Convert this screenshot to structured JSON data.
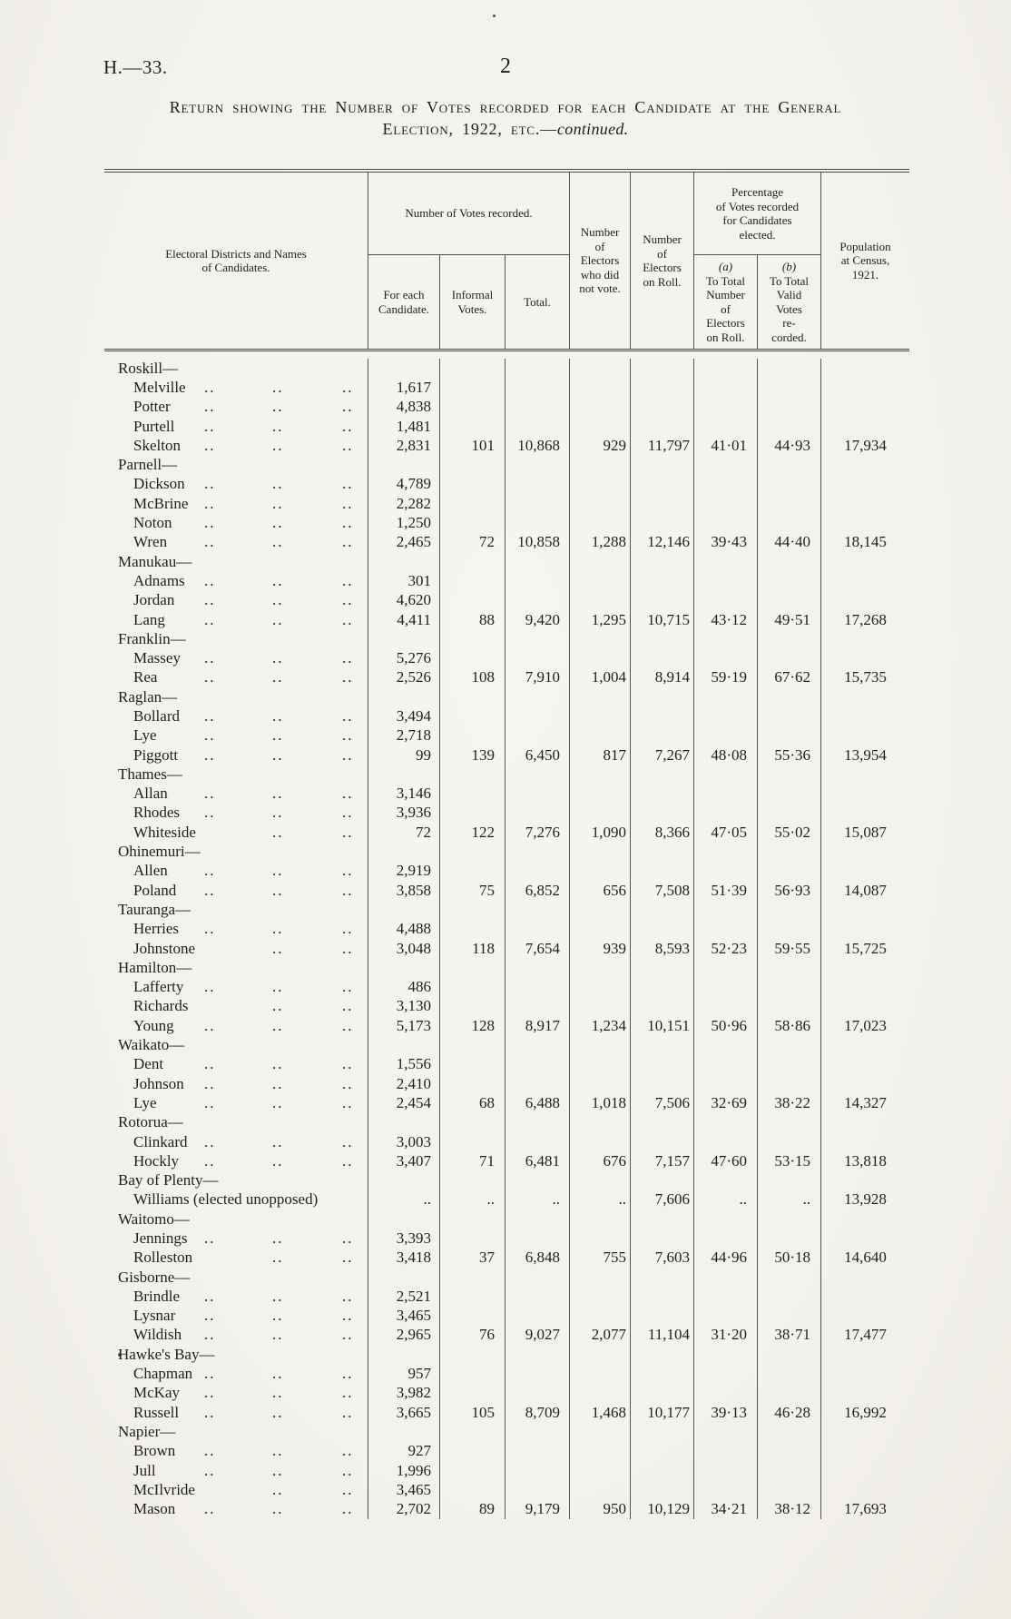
{
  "page": {
    "doc_ref": "H.—33.",
    "page_number": "2",
    "title_line1": "Return showing the Number of Votes recorded for each Candidate at the General",
    "title_line2": "Election, 1922, etc.—",
    "title_line2_italic": "continued."
  },
  "table": {
    "headers": {
      "districts": "Electoral Districts and Names\nof Candidates.",
      "votes_group": "Number of Votes recorded.",
      "for_each": "For each\nCandidate.",
      "informal": "Informal\nVotes.",
      "total": "Total.",
      "not_voted": "Number\nof\nElectors\nwho did\nnot vote.",
      "on_roll": "Number\nof\nElectors\non Roll.",
      "pct_group": "Percentage\nof Votes recorded\nfor Candidates\nelected.",
      "pct_a_label": "(a)",
      "pct_a": "To Total\nNumber\nof\nElectors\non Roll.",
      "pct_b_label": "(b)",
      "pct_b": "To Total\nValid\nVotes\nre-\ncorded.",
      "population": "Population\nat Census,\n1921."
    },
    "districts": [
      {
        "name": "Roskill—",
        "candidates": [
          {
            "name": "Melville",
            "votes": "1,617"
          },
          {
            "name": "Potter",
            "votes": "4,838"
          },
          {
            "name": "Purtell",
            "votes": "1,481"
          },
          {
            "name": "Skelton",
            "votes": "2,831"
          }
        ],
        "informal": "101",
        "total": "10,868",
        "not_voted": "929",
        "on_roll": "11,797",
        "pct_a": "41·01",
        "pct_b": "44·93",
        "population": "17,934"
      },
      {
        "name": "Parnell—",
        "candidates": [
          {
            "name": "Dickson",
            "votes": "4,789"
          },
          {
            "name": "McBrine",
            "votes": "2,282"
          },
          {
            "name": "Noton",
            "votes": "1,250"
          },
          {
            "name": "Wren",
            "votes": "2,465"
          }
        ],
        "informal": "72",
        "total": "10,858",
        "not_voted": "1,288",
        "on_roll": "12,146",
        "pct_a": "39·43",
        "pct_b": "44·40",
        "population": "18,145"
      },
      {
        "name": "Manukau—",
        "candidates": [
          {
            "name": "Adnams",
            "votes": "301"
          },
          {
            "name": "Jordan",
            "votes": "4,620"
          },
          {
            "name": "Lang",
            "votes": "4,411"
          }
        ],
        "informal": "88",
        "total": "9,420",
        "not_voted": "1,295",
        "on_roll": "10,715",
        "pct_a": "43·12",
        "pct_b": "49·51",
        "population": "17,268"
      },
      {
        "name": "Franklin—",
        "candidates": [
          {
            "name": "Massey",
            "votes": "5,276"
          },
          {
            "name": "Rea",
            "votes": "2,526"
          }
        ],
        "informal": "108",
        "total": "7,910",
        "not_voted": "1,004",
        "on_roll": "8,914",
        "pct_a": "59·19",
        "pct_b": "67·62",
        "population": "15,735"
      },
      {
        "name": "Raglan—",
        "candidates": [
          {
            "name": "Bollard",
            "votes": "3,494"
          },
          {
            "name": "Lye",
            "votes": "2,718"
          },
          {
            "name": "Piggott",
            "votes": "99"
          }
        ],
        "informal": "139",
        "total": "6,450",
        "not_voted": "817",
        "on_roll": "7,267",
        "pct_a": "48·08",
        "pct_b": "55·36",
        "population": "13,954"
      },
      {
        "name": "Thames—",
        "candidates": [
          {
            "name": "Allan",
            "votes": "3,146"
          },
          {
            "name": "Rhodes",
            "votes": "3,936"
          },
          {
            "name": "Whiteside",
            "votes": "72",
            "dots": 2
          }
        ],
        "informal": "122",
        "total": "7,276",
        "not_voted": "1,090",
        "on_roll": "8,366",
        "pct_a": "47·05",
        "pct_b": "55·02",
        "population": "15,087"
      },
      {
        "name": "Ohinemuri—",
        "candidates": [
          {
            "name": "Allen",
            "votes": "2,919"
          },
          {
            "name": "Poland",
            "votes": "3,858"
          }
        ],
        "informal": "75",
        "total": "6,852",
        "not_voted": "656",
        "on_roll": "7,508",
        "pct_a": "51·39",
        "pct_b": "56·93",
        "population": "14,087"
      },
      {
        "name": "Tauranga—",
        "candidates": [
          {
            "name": "Herries",
            "votes": "4,488"
          },
          {
            "name": "Johnstone",
            "votes": "3,048",
            "dots": 2
          }
        ],
        "informal": "118",
        "total": "7,654",
        "not_voted": "939",
        "on_roll": "8,593",
        "pct_a": "52·23",
        "pct_b": "59·55",
        "population": "15,725"
      },
      {
        "name": "Hamilton—",
        "candidates": [
          {
            "name": "Lafferty",
            "votes": "486"
          },
          {
            "name": "Richards",
            "votes": "3,130",
            "dots": 2
          },
          {
            "name": "Young",
            "votes": "5,173"
          }
        ],
        "informal": "128",
        "total": "8,917",
        "not_voted": "1,234",
        "on_roll": "10,151",
        "pct_a": "50·96",
        "pct_b": "58·86",
        "population": "17,023"
      },
      {
        "name": "Waikato—",
        "candidates": [
          {
            "name": "Dent",
            "votes": "1,556"
          },
          {
            "name": "Johnson",
            "votes": "2,410"
          },
          {
            "name": "Lye",
            "votes": "2,454"
          }
        ],
        "informal": "68",
        "total": "6,488",
        "not_voted": "1,018",
        "on_roll": "7,506",
        "pct_a": "32·69",
        "pct_b": "38·22",
        "population": "14,327"
      },
      {
        "name": "Rotorua—",
        "candidates": [
          {
            "name": "Clinkard",
            "votes": "3,003"
          },
          {
            "name": "Hockly",
            "votes": "3,407"
          }
        ],
        "informal": "71",
        "total": "6,481",
        "not_voted": "676",
        "on_roll": "7,157",
        "pct_a": "47·60",
        "pct_b": "53·15",
        "population": "13,818"
      },
      {
        "name": "Bay of Plenty—",
        "candidates": [
          {
            "name": "Williams (elected unopposed)",
            "votes": "..",
            "dots": 0
          }
        ],
        "informal": "..",
        "total": "..",
        "not_voted": "..",
        "on_roll": "7,606",
        "pct_a": "..",
        "pct_b": "..",
        "population": "13,928"
      },
      {
        "name": "Waitomo—",
        "candidates": [
          {
            "name": "Jennings",
            "votes": "3,393"
          },
          {
            "name": "Rolleston",
            "votes": "3,418",
            "dots": 2
          }
        ],
        "informal": "37",
        "total": "6,848",
        "not_voted": "755",
        "on_roll": "7,603",
        "pct_a": "44·96",
        "pct_b": "50·18",
        "population": "14,640"
      },
      {
        "name": "Gisborne—",
        "candidates": [
          {
            "name": "Brindle",
            "votes": "2,521"
          },
          {
            "name": "Lysnar",
            "votes": "3,465"
          },
          {
            "name": "Wildish",
            "votes": "2,965"
          }
        ],
        "informal": "76",
        "total": "9,027",
        "not_voted": "2,077",
        "on_roll": "11,104",
        "pct_a": "31·20",
        "pct_b": "38·71",
        "population": "17,477"
      },
      {
        "name": "Hawke's Bay—",
        "candidates": [
          {
            "name": "Chapman",
            "votes": "957"
          },
          {
            "name": "McKay",
            "votes": "3,982"
          },
          {
            "name": "Russell",
            "votes": "3,665"
          }
        ],
        "informal": "105",
        "total": "8,709",
        "not_voted": "1,468",
        "on_roll": "10,177",
        "pct_a": "39·13",
        "pct_b": "46·28",
        "population": "16,992"
      },
      {
        "name": "Napier—",
        "candidates": [
          {
            "name": "Brown",
            "votes": "927"
          },
          {
            "name": "Jull",
            "votes": "1,996"
          },
          {
            "name": "McIlvride",
            "votes": "3,465",
            "dots": 2
          },
          {
            "name": "Mason",
            "votes": "2,702"
          }
        ],
        "informal": "89",
        "total": "9,179",
        "not_voted": "950",
        "on_roll": "10,129",
        "pct_a": "34·21",
        "pct_b": "38·12",
        "population": "17,693"
      }
    ]
  }
}
